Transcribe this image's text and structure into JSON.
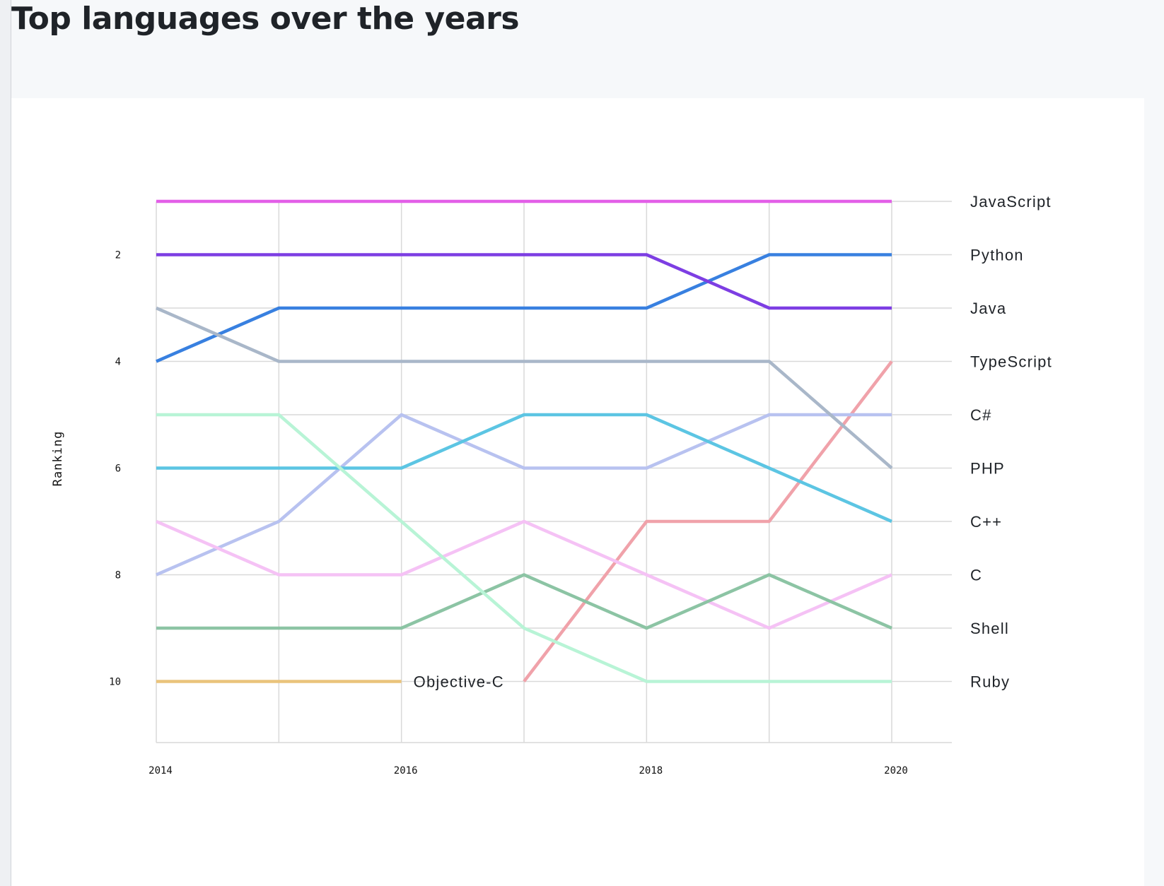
{
  "page": {
    "title": "Top languages over the years"
  },
  "chart_data": {
    "type": "line",
    "title": "Top languages over the years",
    "xlabel": "",
    "ylabel": "Ranking",
    "x": [
      2014,
      2015,
      2016,
      2017,
      2018,
      2019,
      2020
    ],
    "x_ticks": [
      "2014",
      "2016",
      "2018",
      "2020"
    ],
    "y_ticks": [
      "2",
      "4",
      "6",
      "8",
      "10"
    ],
    "ylim": [
      0.5,
      11
    ],
    "y_inverted": true,
    "grid": true,
    "legend": "right-end labels",
    "series": [
      {
        "name": "JavaScript",
        "color": "#e35fe8",
        "values": [
          1,
          1,
          1,
          1,
          1,
          1,
          1
        ]
      },
      {
        "name": "Python",
        "color": "#3880e0",
        "values": [
          4,
          3,
          3,
          3,
          3,
          2,
          2
        ]
      },
      {
        "name": "Java",
        "color": "#7d3ee3",
        "values": [
          2,
          2,
          2,
          2,
          2,
          3,
          3
        ]
      },
      {
        "name": "TypeScript",
        "color": "#f0a2aa",
        "values": [
          null,
          null,
          null,
          10,
          7,
          7,
          4
        ]
      },
      {
        "name": "C#",
        "color": "#b8c2f0",
        "values": [
          8,
          7,
          5,
          6,
          6,
          5,
          5
        ]
      },
      {
        "name": "PHP",
        "color": "#a9b7c9",
        "values": [
          3,
          4,
          4,
          4,
          4,
          4,
          6
        ]
      },
      {
        "name": "C++",
        "color": "#5cc5e3",
        "values": [
          6,
          6,
          6,
          5,
          5,
          6,
          7
        ]
      },
      {
        "name": "C",
        "color": "#f5c2f5",
        "values": [
          7,
          8,
          8,
          7,
          8,
          9,
          8
        ]
      },
      {
        "name": "Shell",
        "color": "#8cc4a4",
        "values": [
          9,
          9,
          9,
          8,
          9,
          8,
          9
        ]
      },
      {
        "name": "Ruby",
        "color": "#b8f4d6",
        "values": [
          5,
          5,
          7,
          9,
          10,
          10,
          10
        ]
      },
      {
        "name": "Objective-C",
        "color": "#eac37b",
        "values": [
          10,
          10,
          10,
          null,
          null,
          null,
          null
        ]
      }
    ]
  }
}
